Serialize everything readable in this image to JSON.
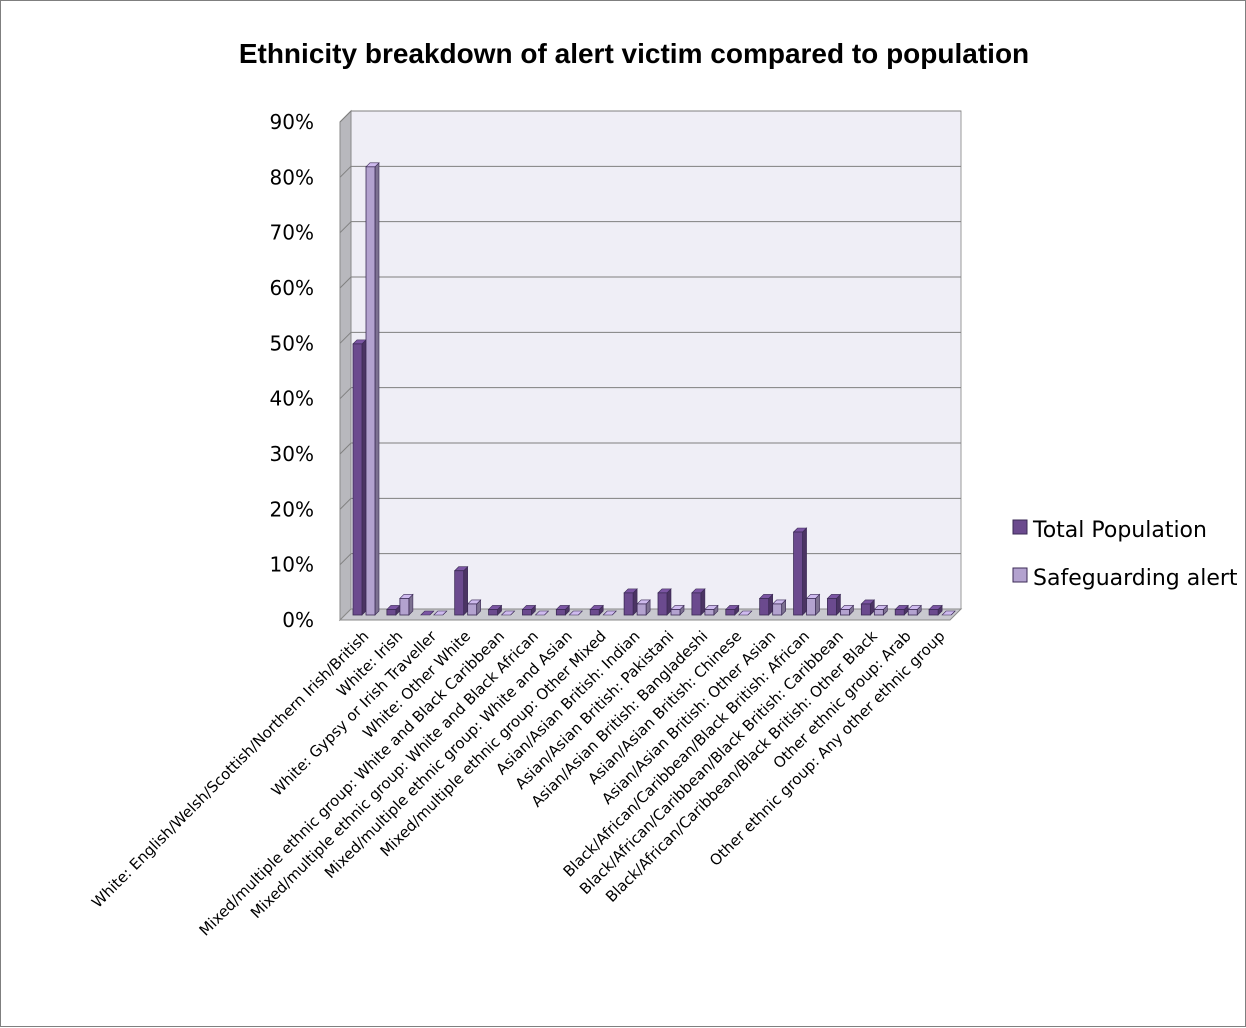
{
  "chart_data": {
    "type": "bar",
    "title": "Ethnicity breakdown of alert victim compared to population",
    "xlabel": "",
    "ylabel": "",
    "ylim": [
      0,
      90
    ],
    "y_ticks": [
      "0%",
      "10%",
      "20%",
      "30%",
      "40%",
      "50%",
      "60%",
      "70%",
      "80%",
      "90%"
    ],
    "grid": true,
    "legend_position": "right",
    "categories": [
      "White: English/Welsh/Scottish/Northern Irish/British",
      "White: Irish",
      "White: Gypsy or Irish Traveller",
      "White: Other White",
      "Mixed/multiple ethnic group: White and Black Caribbean",
      "Mixed/multiple ethnic group: White and Black African",
      "Mixed/multiple ethnic group: White and Asian",
      "Mixed/multiple ethnic group: Other Mixed",
      "Asian/Asian British: Indian",
      "Asian/Asian British: Pakistani",
      "Asian/Asian British: Bangladeshi",
      "Asian/Asian British: Chinese",
      "Asian/Asian British: Other Asian",
      "Black/African/Caribbean/Black British: African",
      "Black/African/Caribbean/Black British: Caribbean",
      "Black/African/Caribbean/Black British: Other Black",
      "Other ethnic group: Arab",
      "Other ethnic group: Any other ethnic group"
    ],
    "series": [
      {
        "name": "Total Population",
        "color": "#6b4a8e",
        "values": [
          49,
          1,
          0,
          8,
          1,
          1,
          1,
          1,
          4,
          4,
          4,
          1,
          3,
          15,
          3,
          2,
          1,
          1
        ]
      },
      {
        "name": "Safeguarding alert",
        "color": "#b3a2cf",
        "values": [
          81,
          3,
          0,
          2,
          0,
          0,
          0,
          0,
          2,
          1,
          1,
          0,
          2,
          3,
          1,
          1,
          1,
          0
        ]
      }
    ]
  }
}
